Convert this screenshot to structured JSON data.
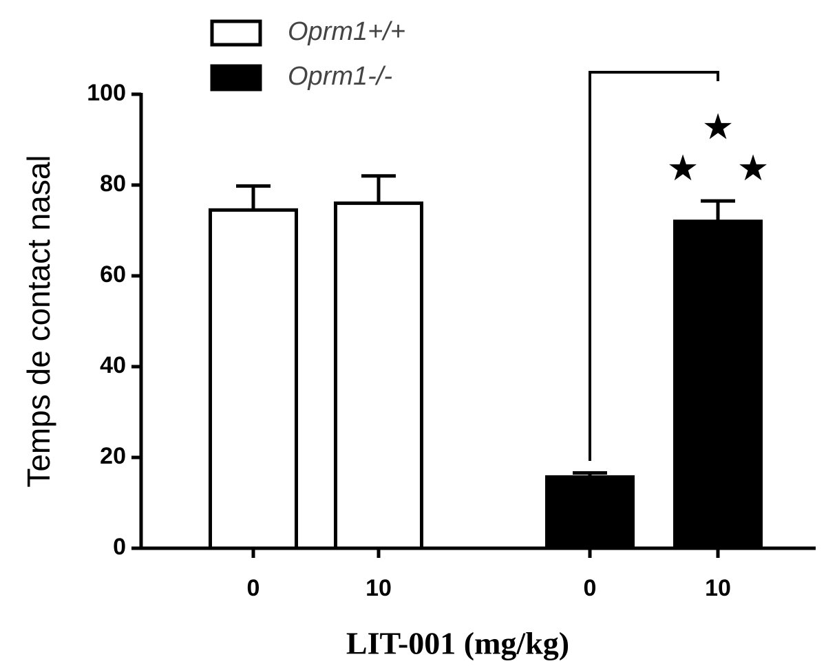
{
  "chart_data": {
    "type": "bar",
    "y_label": "Temps de contact nasal",
    "x_label": "LIT-001 (mg/kg)",
    "categories": [
      "0",
      "10",
      "0",
      "10"
    ],
    "series": [
      {
        "name": "Oprm1+/+",
        "color": "#ffffff",
        "values": [
          74.5,
          76,
          null,
          null
        ],
        "errors": [
          5.3,
          6,
          null,
          null
        ]
      },
      {
        "name": "Oprm1-/-",
        "color": "#000000",
        "values": [
          null,
          null,
          15.7,
          72
        ],
        "errors": [
          null,
          null,
          0.9,
          4.5
        ]
      }
    ],
    "ylim": [
      0,
      100
    ],
    "yticks": [
      0,
      20,
      40,
      60,
      80,
      100
    ],
    "annotations": [
      "★",
      "★",
      "★"
    ]
  }
}
